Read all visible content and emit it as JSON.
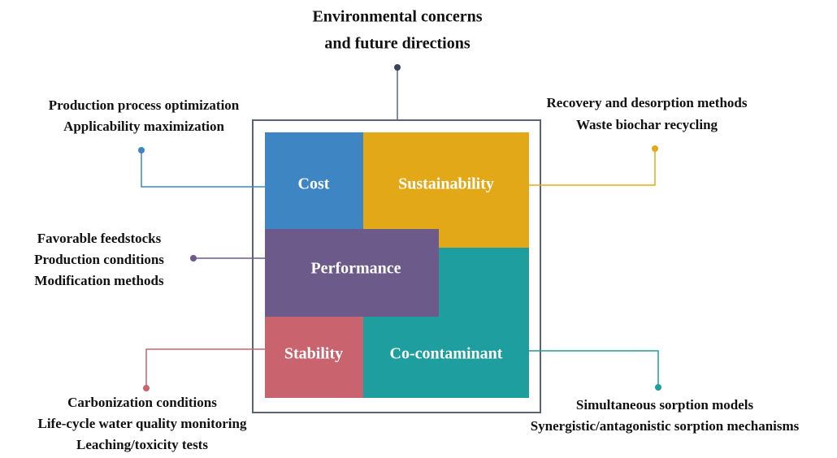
{
  "header": {
    "lines": [
      "Environmental concerns",
      "and future directions"
    ]
  },
  "nodes": [
    {
      "label": "Cost",
      "notes": [
        "Production process optimization",
        "Applicability maximization"
      ]
    },
    {
      "label": "Sustainability",
      "notes": [
        "Recovery and desorption methods",
        "Waste biochar recycling"
      ]
    },
    {
      "label": "Performance",
      "notes": [
        "Favorable feedstocks",
        "Production conditions",
        "Modification methods"
      ]
    },
    {
      "label": "Stability",
      "notes": [
        "Carbonization conditions",
        "Life-cycle water quality monitoring",
        "Leaching/toxicity tests"
      ]
    },
    {
      "label": "Co-contaminant",
      "notes": [
        "Simultaneous sorption models",
        "Synergistic/antagonistic sorption mechanisms"
      ]
    }
  ]
}
